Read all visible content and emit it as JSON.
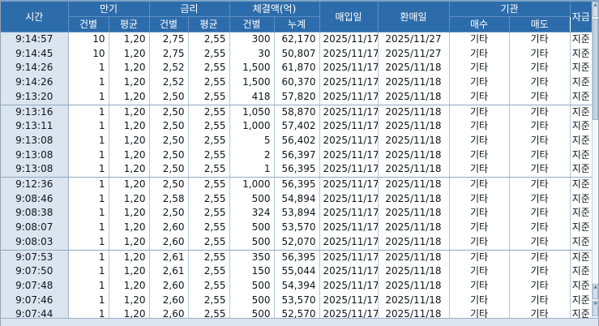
{
  "table": {
    "header_groups": [
      {
        "label": "시간"
      },
      {
        "label": "만기"
      },
      {
        "label": "금리"
      },
      {
        "label": "체결액(억)"
      },
      {
        "label": "매입일"
      },
      {
        "label": "환매일"
      },
      {
        "label": "기관"
      },
      {
        "label": "자금"
      }
    ],
    "subheaders": [
      "건별",
      "평균",
      "건별",
      "평균",
      "건별",
      "누계",
      "매수",
      "매도"
    ],
    "rows": [
      [
        "9:14:57",
        "10",
        "1,20",
        "2,75",
        "2,55",
        "300",
        "62,170",
        "2025/11/17",
        "2025/11/27",
        "기타",
        "기타",
        "지준"
      ],
      [
        "9:14:45",
        "10",
        "1,20",
        "2,75",
        "2,55",
        "30",
        "50,807",
        "2025/11/17",
        "2025/11/27",
        "기타",
        "기타",
        "지준"
      ],
      [
        "9:14:26",
        "1",
        "1,20",
        "2,52",
        "2,55",
        "1,500",
        "61,870",
        "2025/11/17",
        "2025/11/18",
        "기타",
        "기타",
        "지준"
      ],
      [
        "9:14:26",
        "1",
        "1,20",
        "2,52",
        "2,55",
        "1,500",
        "60,370",
        "2025/11/17",
        "2025/11/18",
        "기타",
        "기타",
        "지준"
      ],
      [
        "9:13:20",
        "1",
        "1,20",
        "2,50",
        "2,55",
        "418",
        "57,820",
        "2025/11/17",
        "2025/11/18",
        "기타",
        "기타",
        "지준"
      ],
      [
        "9:13:16",
        "1",
        "1,20",
        "2,50",
        "2,55",
        "1,050",
        "58,870",
        "2025/11/17",
        "2025/11/18",
        "기타",
        "기타",
        "지준"
      ],
      [
        "9:13:11",
        "1",
        "1,20",
        "2,50",
        "2,55",
        "1,000",
        "57,402",
        "2025/11/17",
        "2025/11/18",
        "기타",
        "기타",
        "지준"
      ],
      [
        "9:13:08",
        "1",
        "1,20",
        "2,50",
        "2,55",
        "5",
        "56,402",
        "2025/11/17",
        "2025/11/18",
        "기타",
        "기타",
        "지준"
      ],
      [
        "9:13:08",
        "1",
        "1,20",
        "2,50",
        "2,55",
        "2",
        "56,397",
        "2025/11/17",
        "2025/11/18",
        "기타",
        "기타",
        "지준"
      ],
      [
        "9:13:08",
        "1",
        "1,20",
        "2,50",
        "2,55",
        "1",
        "56,395",
        "2025/11/17",
        "2025/11/18",
        "기타",
        "기타",
        "지준"
      ],
      [
        "9:12:36",
        "1",
        "1,20",
        "2,50",
        "2,55",
        "1,000",
        "56,395",
        "2025/11/17",
        "2025/11/18",
        "기타",
        "기타",
        "지준"
      ],
      [
        "9:08:46",
        "1",
        "1,20",
        "2,58",
        "2,55",
        "500",
        "54,894",
        "2025/11/17",
        "2025/11/18",
        "기타",
        "기타",
        "지준"
      ],
      [
        "9:08:38",
        "1",
        "1,20",
        "2,50",
        "2,55",
        "324",
        "53,894",
        "2025/11/17",
        "2025/11/18",
        "기타",
        "기타",
        "지준"
      ],
      [
        "9:08:07",
        "1",
        "1,20",
        "2,60",
        "2,55",
        "500",
        "53,570",
        "2025/11/17",
        "2025/11/18",
        "기타",
        "기타",
        "지준"
      ],
      [
        "9:08:03",
        "1",
        "1,20",
        "2,60",
        "2,55",
        "500",
        "52,070",
        "2025/11/17",
        "2025/11/18",
        "기타",
        "기타",
        "지준"
      ],
      [
        "9:07:53",
        "1",
        "1,20",
        "2,61",
        "2,55",
        "350",
        "56,395",
        "2025/11/17",
        "2025/11/18",
        "기타",
        "기타",
        "지준"
      ],
      [
        "9:07:50",
        "1",
        "1,20",
        "2,61",
        "2,55",
        "150",
        "55,044",
        "2025/11/17",
        "2025/11/18",
        "기타",
        "기타",
        "지준"
      ],
      [
        "9:07:48",
        "1",
        "1,20",
        "2,60",
        "2,55",
        "500",
        "54,394",
        "2025/11/17",
        "2025/11/18",
        "기타",
        "기타",
        "지준"
      ],
      [
        "9:07:46",
        "1",
        "1,20",
        "2,60",
        "2,55",
        "500",
        "53,570",
        "2025/11/17",
        "2025/11/18",
        "기타",
        "기타",
        "지준"
      ],
      [
        "9:07:44",
        "1",
        "1,20",
        "2,60",
        "2,55",
        "500",
        "52,570",
        "2025/11/17",
        "2025/11/18",
        "기타",
        "기타",
        "지준"
      ]
    ],
    "group_size": 5
  },
  "icons": {
    "scroll_up": "▲",
    "scroll_down": "▼"
  },
  "colors": {
    "header_bg": "#2d6caa",
    "header_grid": "#5d8ec4",
    "header_text": "#ffffff",
    "time_col_bg": "#dbe5ef",
    "cell_bg": "#ffffff",
    "col_grid": "#b3c6d9",
    "group_line": "#8fa8c0",
    "scroll_track": "#f6f8fa",
    "scroll_thumb": "#c6d3e0",
    "hscroll_bg": "#dce4ef"
  }
}
